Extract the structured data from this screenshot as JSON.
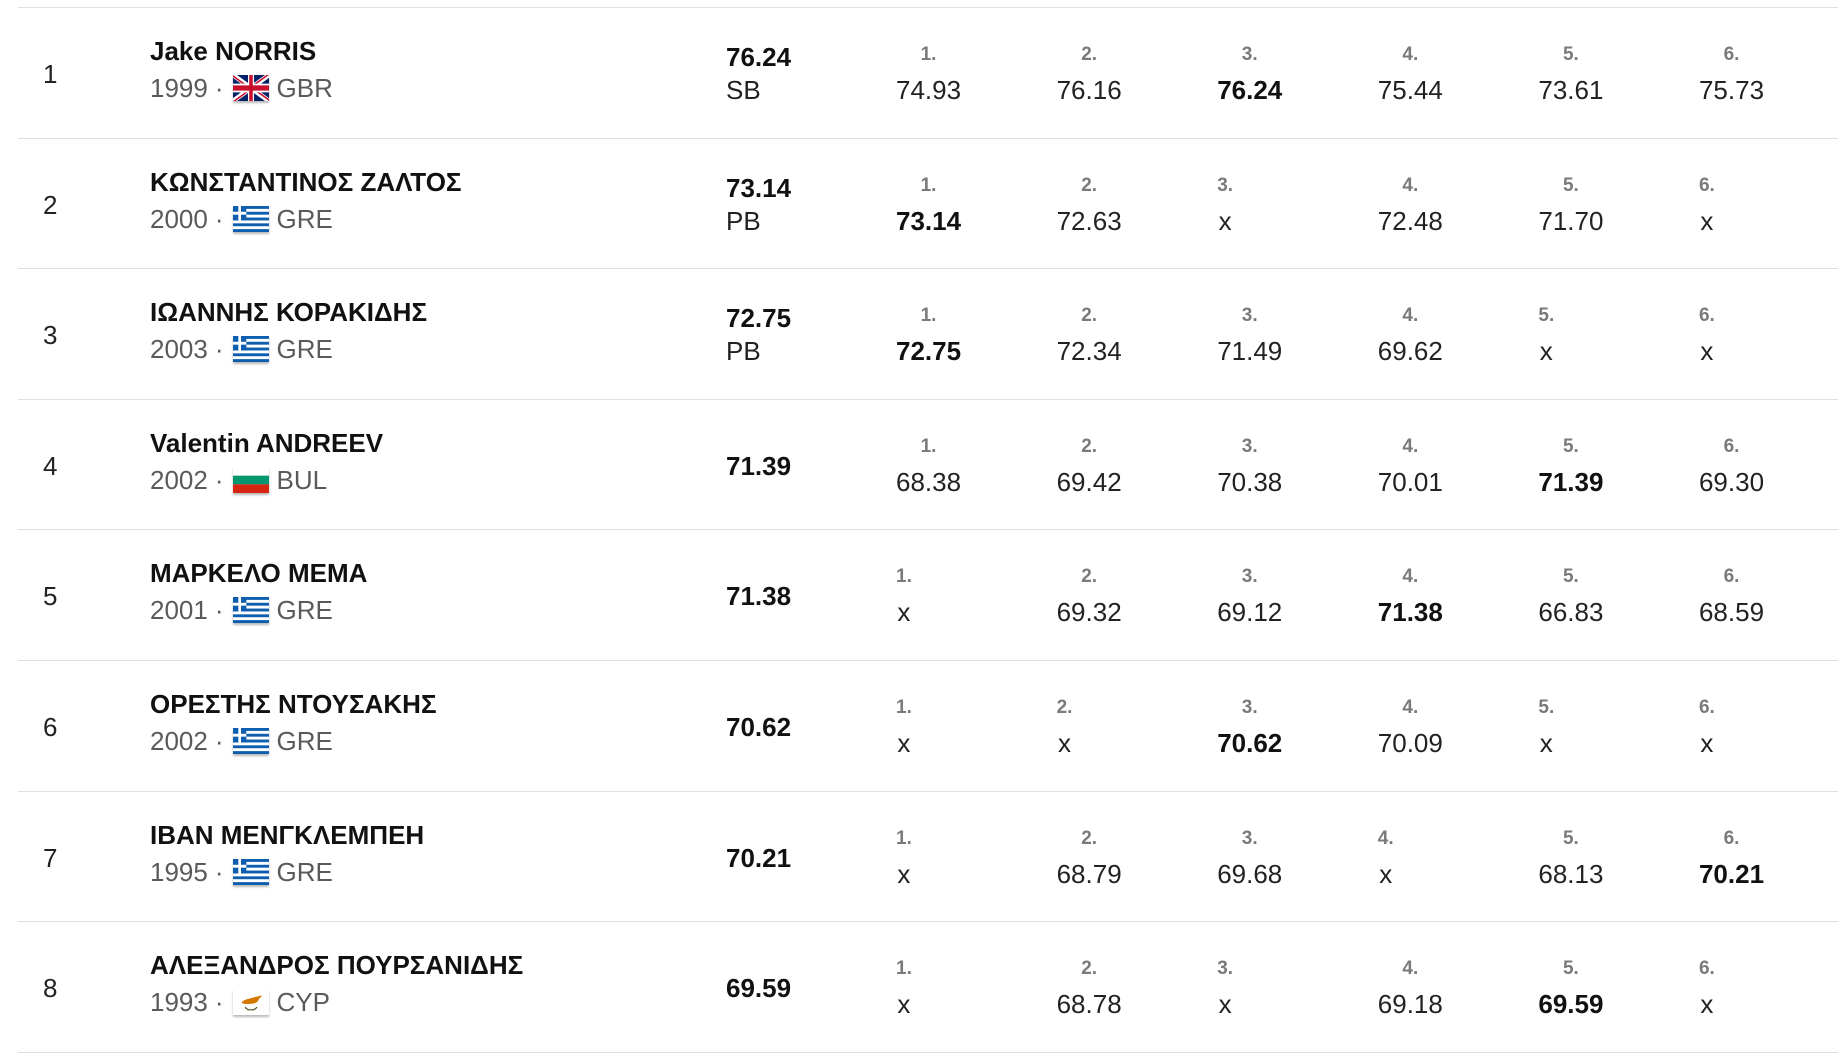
{
  "separator": "·",
  "colors": {
    "divider": "#e0e0e0",
    "text": "#111111",
    "muted": "#5a5a5a",
    "attempt_label": "#7a7a7a"
  },
  "results": [
    {
      "rank": "1",
      "name": "Jake NORRIS",
      "year": "1999",
      "country": "GBR",
      "flag_icon": "union-jack-flag-icon",
      "mark": "76.24",
      "note": "SB",
      "attempts": [
        {
          "label": "1.",
          "value": "74.93"
        },
        {
          "label": "2.",
          "value": "76.16"
        },
        {
          "label": "3.",
          "value": "76.24",
          "best": true
        },
        {
          "label": "4.",
          "value": "75.44"
        },
        {
          "label": "5.",
          "value": "73.61"
        },
        {
          "label": "6.",
          "value": "75.73"
        }
      ]
    },
    {
      "rank": "2",
      "name": "ΚΩΝΣΤΑΝΤΙΝΟΣ ΖΑΛΤΟΣ",
      "year": "2000",
      "country": "GRE",
      "flag_icon": "greek-flag-icon",
      "mark": "73.14",
      "note": "PB",
      "attempts": [
        {
          "label": "1.",
          "value": "73.14",
          "best": true
        },
        {
          "label": "2.",
          "value": "72.63"
        },
        {
          "label": "3.",
          "value": "x"
        },
        {
          "label": "4.",
          "value": "72.48"
        },
        {
          "label": "5.",
          "value": "71.70"
        },
        {
          "label": "6.",
          "value": "x"
        }
      ]
    },
    {
      "rank": "3",
      "name": "ΙΩΑΝΝΗΣ ΚΟΡΑΚΙΔΗΣ",
      "year": "2003",
      "country": "GRE",
      "flag_icon": "greek-flag-icon",
      "mark": "72.75",
      "note": "PB",
      "attempts": [
        {
          "label": "1.",
          "value": "72.75",
          "best": true
        },
        {
          "label": "2.",
          "value": "72.34"
        },
        {
          "label": "3.",
          "value": "71.49"
        },
        {
          "label": "4.",
          "value": "69.62"
        },
        {
          "label": "5.",
          "value": "x"
        },
        {
          "label": "6.",
          "value": "x"
        }
      ]
    },
    {
      "rank": "4",
      "name": "Valentin ANDREEV",
      "year": "2002",
      "country": "BUL",
      "flag_icon": "bulgarian-flag-icon",
      "mark": "71.39",
      "attempts": [
        {
          "label": "1.",
          "value": "68.38"
        },
        {
          "label": "2.",
          "value": "69.42"
        },
        {
          "label": "3.",
          "value": "70.38"
        },
        {
          "label": "4.",
          "value": "70.01"
        },
        {
          "label": "5.",
          "value": "71.39",
          "best": true
        },
        {
          "label": "6.",
          "value": "69.30"
        }
      ]
    },
    {
      "rank": "5",
      "name": "ΜΑΡΚΕΛΟ ΜΕΜΑ",
      "year": "2001",
      "country": "GRE",
      "flag_icon": "greek-flag-icon",
      "mark": "71.38",
      "attempts": [
        {
          "label": "1.",
          "value": "x"
        },
        {
          "label": "2.",
          "value": "69.32"
        },
        {
          "label": "3.",
          "value": "69.12"
        },
        {
          "label": "4.",
          "value": "71.38",
          "best": true
        },
        {
          "label": "5.",
          "value": "66.83"
        },
        {
          "label": "6.",
          "value": "68.59"
        }
      ]
    },
    {
      "rank": "6",
      "name": "ΟΡΕΣΤΗΣ ΝΤΟΥΣΑΚΗΣ",
      "year": "2002",
      "country": "GRE",
      "flag_icon": "greek-flag-icon",
      "mark": "70.62",
      "attempts": [
        {
          "label": "1.",
          "value": "x"
        },
        {
          "label": "2.",
          "value": "x"
        },
        {
          "label": "3.",
          "value": "70.62",
          "best": true
        },
        {
          "label": "4.",
          "value": "70.09"
        },
        {
          "label": "5.",
          "value": "x"
        },
        {
          "label": "6.",
          "value": "x"
        }
      ]
    },
    {
      "rank": "7",
      "name": "ΙΒΑΝ ΜΕΝΓΚΛΕΜΠΕΗ",
      "year": "1995",
      "country": "GRE",
      "flag_icon": "greek-flag-icon",
      "mark": "70.21",
      "attempts": [
        {
          "label": "1.",
          "value": "x"
        },
        {
          "label": "2.",
          "value": "68.79"
        },
        {
          "label": "3.",
          "value": "69.68"
        },
        {
          "label": "4.",
          "value": "x"
        },
        {
          "label": "5.",
          "value": "68.13"
        },
        {
          "label": "6.",
          "value": "70.21",
          "best": true
        }
      ]
    },
    {
      "rank": "8",
      "name": "ΑΛΕΞΑΝΔΡΟΣ ΠΟΥΡΣΑΝΙΔΗΣ",
      "year": "1993",
      "country": "CYP",
      "flag_icon": "cypriot-flag-icon",
      "mark": "69.59",
      "attempts": [
        {
          "label": "1.",
          "value": "x"
        },
        {
          "label": "2.",
          "value": "68.78"
        },
        {
          "label": "3.",
          "value": "x"
        },
        {
          "label": "4.",
          "value": "69.18"
        },
        {
          "label": "5.",
          "value": "69.59",
          "best": true
        },
        {
          "label": "6.",
          "value": "x"
        }
      ]
    }
  ]
}
